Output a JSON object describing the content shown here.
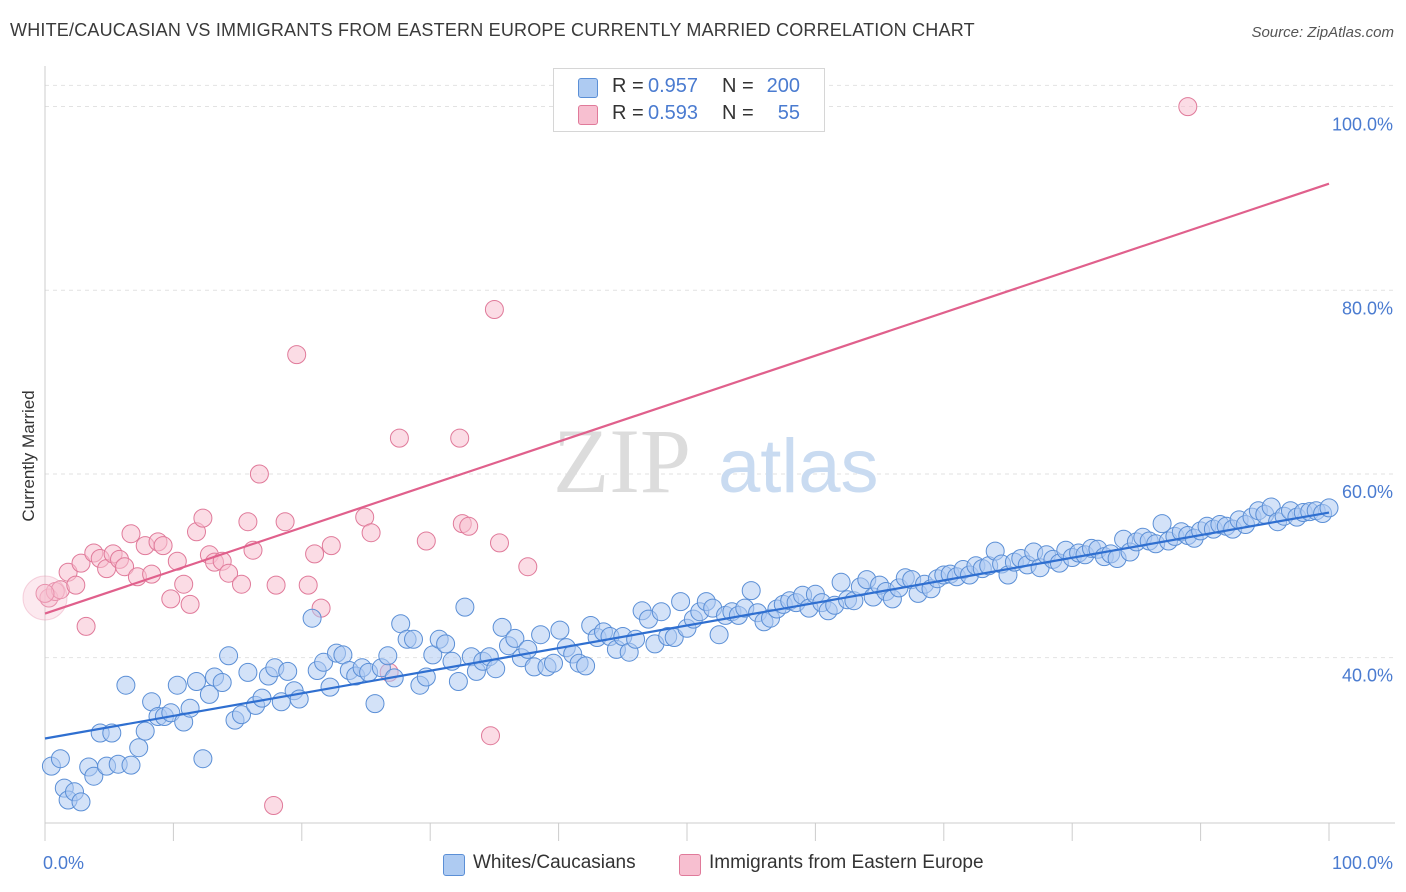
{
  "header": {
    "title": "WHITE/CAUCASIAN VS IMMIGRANTS FROM EASTERN EUROPE CURRENTLY MARRIED CORRELATION CHART",
    "source": "Source: ZipAtlas.com"
  },
  "watermark": {
    "zip": "ZIP",
    "atlas": "atlas"
  },
  "legend": {
    "rows": [
      {
        "r_label": "R =",
        "r_value": "0.957",
        "n_label": "N =",
        "n_value": "200",
        "color": "#aecbf2",
        "edge": "#5b8fd6"
      },
      {
        "r_label": "R =",
        "r_value": "0.593",
        "n_label": "N =",
        "n_value": "55",
        "color": "#f7bfd0",
        "edge": "#e07a9a"
      }
    ]
  },
  "bottom_legend": [
    {
      "label": "Whites/Caucasians",
      "color": "#aecbf2",
      "edge": "#5b8fd6"
    },
    {
      "label": "Immigrants from Eastern Europe",
      "color": "#f7bfd0",
      "edge": "#e07a9a"
    }
  ],
  "chart_data": {
    "type": "scatter",
    "title": "WHITE/CAUCASIAN VS IMMIGRANTS FROM EASTERN EUROPE CURRENTLY MARRIED CORRELATION CHART",
    "xlabel": "",
    "ylabel": "Currently Married",
    "xlim": [
      0,
      100
    ],
    "ylim": [
      22,
      103
    ],
    "x_ticks": [
      "0.0%",
      "100.0%"
    ],
    "y_ticks": [
      {
        "value": 40,
        "label": "40.0%"
      },
      {
        "value": 60,
        "label": "60.0%"
      },
      {
        "value": 80,
        "label": "80.0%"
      },
      {
        "value": 100,
        "label": "100.0%"
      }
    ],
    "grid": "horizontal dashed",
    "legend_position": "top-center",
    "series": [
      {
        "name": "Whites/Caucasians",
        "color": "#5b8fd6",
        "fill": "#aecbf2",
        "trend": {
          "x": [
            0,
            100
          ],
          "y": [
            31.2,
            55.8
          ],
          "color": "#2f6fd0"
        },
        "points": [
          [
            0.5,
            28.2
          ],
          [
            1.2,
            29.0
          ],
          [
            1.5,
            25.8
          ],
          [
            1.8,
            24.5
          ],
          [
            2.3,
            25.4
          ],
          [
            2.8,
            24.3
          ],
          [
            3.4,
            28.1
          ],
          [
            3.8,
            27.1
          ],
          [
            4.3,
            31.8
          ],
          [
            4.8,
            28.2
          ],
          [
            5.2,
            31.8
          ],
          [
            5.7,
            28.4
          ],
          [
            6.3,
            37.0
          ],
          [
            6.7,
            28.3
          ],
          [
            7.3,
            30.2
          ],
          [
            7.8,
            32.0
          ],
          [
            8.3,
            35.2
          ],
          [
            8.8,
            33.6
          ],
          [
            9.3,
            33.6
          ],
          [
            9.8,
            34.0
          ],
          [
            10.3,
            37.0
          ],
          [
            10.8,
            33.0
          ],
          [
            11.3,
            34.5
          ],
          [
            11.8,
            37.4
          ],
          [
            12.3,
            29.0
          ],
          [
            12.8,
            36.0
          ],
          [
            13.2,
            37.9
          ],
          [
            13.8,
            37.3
          ],
          [
            14.3,
            40.2
          ],
          [
            14.8,
            33.2
          ],
          [
            15.3,
            33.8
          ],
          [
            15.8,
            38.4
          ],
          [
            16.4,
            34.8
          ],
          [
            16.9,
            35.6
          ],
          [
            17.4,
            38.0
          ],
          [
            17.9,
            38.9
          ],
          [
            18.4,
            35.2
          ],
          [
            18.9,
            38.5
          ],
          [
            19.4,
            36.4
          ],
          [
            19.8,
            35.5
          ],
          [
            20.8,
            44.3
          ],
          [
            21.2,
            38.6
          ],
          [
            21.7,
            39.5
          ],
          [
            22.2,
            36.8
          ],
          [
            22.7,
            40.5
          ],
          [
            23.2,
            40.3
          ],
          [
            23.7,
            38.6
          ],
          [
            24.2,
            38.0
          ],
          [
            24.7,
            38.9
          ],
          [
            25.2,
            38.4
          ],
          [
            25.7,
            35.0
          ],
          [
            26.2,
            38.9
          ],
          [
            26.7,
            40.2
          ],
          [
            27.2,
            37.8
          ],
          [
            27.7,
            43.7
          ],
          [
            28.2,
            42.0
          ],
          [
            28.7,
            42.0
          ],
          [
            29.2,
            37.0
          ],
          [
            29.7,
            37.9
          ],
          [
            30.2,
            40.3
          ],
          [
            30.7,
            42.0
          ],
          [
            31.2,
            41.5
          ],
          [
            31.7,
            39.6
          ],
          [
            32.2,
            37.4
          ],
          [
            32.7,
            45.5
          ],
          [
            33.2,
            40.1
          ],
          [
            33.6,
            38.5
          ],
          [
            34.1,
            39.6
          ],
          [
            34.6,
            40.1
          ],
          [
            35.1,
            38.8
          ],
          [
            35.6,
            43.3
          ],
          [
            36.1,
            41.3
          ],
          [
            36.6,
            42.1
          ],
          [
            37.1,
            40.0
          ],
          [
            37.6,
            40.9
          ],
          [
            38.1,
            39.0
          ],
          [
            38.6,
            42.5
          ],
          [
            39.1,
            39.0
          ],
          [
            39.6,
            39.4
          ],
          [
            40.1,
            43.0
          ],
          [
            40.6,
            41.1
          ],
          [
            41.1,
            40.4
          ],
          [
            41.6,
            39.4
          ],
          [
            42.1,
            39.1
          ],
          [
            42.5,
            43.5
          ],
          [
            43.0,
            42.2
          ],
          [
            43.5,
            42.8
          ],
          [
            44.0,
            42.3
          ],
          [
            44.5,
            40.9
          ],
          [
            45.0,
            42.3
          ],
          [
            45.5,
            40.6
          ],
          [
            46.0,
            42.0
          ],
          [
            46.5,
            45.1
          ],
          [
            47.0,
            44.2
          ],
          [
            47.5,
            41.5
          ],
          [
            48.0,
            45.0
          ],
          [
            48.5,
            42.3
          ],
          [
            49.0,
            42.2
          ],
          [
            49.5,
            46.1
          ],
          [
            50.0,
            43.2
          ],
          [
            50.5,
            44.2
          ],
          [
            51.0,
            45.0
          ],
          [
            51.5,
            46.1
          ],
          [
            52.0,
            45.4
          ],
          [
            52.5,
            42.5
          ],
          [
            53.0,
            44.6
          ],
          [
            53.5,
            45.0
          ],
          [
            54.0,
            44.6
          ],
          [
            54.5,
            45.4
          ],
          [
            55.0,
            47.3
          ],
          [
            55.5,
            44.9
          ],
          [
            56.0,
            43.9
          ],
          [
            56.5,
            44.3
          ],
          [
            57.0,
            45.3
          ],
          [
            57.5,
            45.8
          ],
          [
            58.0,
            46.2
          ],
          [
            58.5,
            46.0
          ],
          [
            59.0,
            46.8
          ],
          [
            59.5,
            45.4
          ],
          [
            60.0,
            46.9
          ],
          [
            60.5,
            46.0
          ],
          [
            61.0,
            45.1
          ],
          [
            61.5,
            45.7
          ],
          [
            62.0,
            48.2
          ],
          [
            62.5,
            46.3
          ],
          [
            63.0,
            46.2
          ],
          [
            63.5,
            47.7
          ],
          [
            64.0,
            48.5
          ],
          [
            64.5,
            46.6
          ],
          [
            65.0,
            47.9
          ],
          [
            65.5,
            47.2
          ],
          [
            66.0,
            46.4
          ],
          [
            66.5,
            47.6
          ],
          [
            67.0,
            48.7
          ],
          [
            67.5,
            48.5
          ],
          [
            68.0,
            47.0
          ],
          [
            68.5,
            48.0
          ],
          [
            69.0,
            47.5
          ],
          [
            69.5,
            48.6
          ],
          [
            70.0,
            49.0
          ],
          [
            70.5,
            49.1
          ],
          [
            71.0,
            48.8
          ],
          [
            71.5,
            49.6
          ],
          [
            72.0,
            49.0
          ],
          [
            72.5,
            50.0
          ],
          [
            73.0,
            49.7
          ],
          [
            73.5,
            50.0
          ],
          [
            74.0,
            51.6
          ],
          [
            74.5,
            50.2
          ],
          [
            75.0,
            49.0
          ],
          [
            75.5,
            50.4
          ],
          [
            76.0,
            50.8
          ],
          [
            76.5,
            50.1
          ],
          [
            77.0,
            51.5
          ],
          [
            77.5,
            49.8
          ],
          [
            78.0,
            51.2
          ],
          [
            78.5,
            50.7
          ],
          [
            79.0,
            50.3
          ],
          [
            79.5,
            51.7
          ],
          [
            80.0,
            50.9
          ],
          [
            80.5,
            51.4
          ],
          [
            81.0,
            51.2
          ],
          [
            81.5,
            51.9
          ],
          [
            82.0,
            51.8
          ],
          [
            82.5,
            51.0
          ],
          [
            83.0,
            51.3
          ],
          [
            83.5,
            50.8
          ],
          [
            84.0,
            52.9
          ],
          [
            84.5,
            51.5
          ],
          [
            85.0,
            52.6
          ],
          [
            85.5,
            53.1
          ],
          [
            86.0,
            52.7
          ],
          [
            86.5,
            52.4
          ],
          [
            87.0,
            54.6
          ],
          [
            87.5,
            52.7
          ],
          [
            88.0,
            53.2
          ],
          [
            88.5,
            53.7
          ],
          [
            89.0,
            53.3
          ],
          [
            89.5,
            53.0
          ],
          [
            90.0,
            53.8
          ],
          [
            90.5,
            54.3
          ],
          [
            91.0,
            54.0
          ],
          [
            91.5,
            54.5
          ],
          [
            92.0,
            54.3
          ],
          [
            92.5,
            54.0
          ],
          [
            93.0,
            55.0
          ],
          [
            93.5,
            54.5
          ],
          [
            94.0,
            55.3
          ],
          [
            94.5,
            56.0
          ],
          [
            95.0,
            55.6
          ],
          [
            95.5,
            56.4
          ],
          [
            96.0,
            54.8
          ],
          [
            96.5,
            55.4
          ],
          [
            97.0,
            56.0
          ],
          [
            97.5,
            55.3
          ],
          [
            98.0,
            55.8
          ],
          [
            98.5,
            55.9
          ],
          [
            99.0,
            56.0
          ],
          [
            99.5,
            55.7
          ],
          [
            100.0,
            56.3
          ]
        ]
      },
      {
        "name": "Immigrants from Eastern Europe",
        "color": "#e07a9a",
        "fill": "#f7bfd0",
        "trend": {
          "x": [
            0,
            100
          ],
          "y": [
            44.8,
            91.6
          ],
          "color": "#e0608c"
        },
        "points": [
          [
            0.3,
            46.5
          ],
          [
            0.8,
            47.2
          ],
          [
            1.2,
            47.4
          ],
          [
            1.8,
            49.3
          ],
          [
            2.4,
            47.9
          ],
          [
            2.8,
            50.3
          ],
          [
            3.2,
            43.4
          ],
          [
            3.8,
            51.4
          ],
          [
            4.3,
            50.8
          ],
          [
            4.8,
            49.7
          ],
          [
            5.3,
            51.3
          ],
          [
            5.8,
            50.7
          ],
          [
            6.2,
            49.9
          ],
          [
            6.7,
            53.5
          ],
          [
            7.2,
            48.8
          ],
          [
            7.8,
            52.2
          ],
          [
            8.3,
            49.1
          ],
          [
            8.8,
            52.6
          ],
          [
            9.2,
            52.2
          ],
          [
            9.8,
            46.4
          ],
          [
            10.3,
            50.5
          ],
          [
            10.8,
            48.0
          ],
          [
            11.3,
            45.8
          ],
          [
            11.8,
            53.7
          ],
          [
            12.3,
            55.2
          ],
          [
            12.8,
            51.2
          ],
          [
            13.2,
            50.4
          ],
          [
            13.8,
            50.5
          ],
          [
            14.3,
            49.2
          ],
          [
            15.3,
            48.0
          ],
          [
            15.8,
            54.8
          ],
          [
            16.2,
            51.7
          ],
          [
            16.7,
            60.0
          ],
          [
            18.0,
            47.9
          ],
          [
            18.7,
            54.8
          ],
          [
            19.6,
            73.0
          ],
          [
            20.5,
            47.9
          ],
          [
            21.0,
            51.3
          ],
          [
            21.5,
            45.4
          ],
          [
            22.3,
            52.2
          ],
          [
            24.9,
            55.3
          ],
          [
            25.4,
            53.6
          ],
          [
            26.8,
            38.4
          ],
          [
            27.6,
            63.9
          ],
          [
            29.7,
            52.7
          ],
          [
            32.3,
            63.9
          ],
          [
            32.5,
            54.6
          ],
          [
            33.0,
            54.3
          ],
          [
            34.7,
            31.5
          ],
          [
            35.0,
            77.9
          ],
          [
            35.4,
            52.5
          ],
          [
            37.6,
            49.9
          ],
          [
            17.8,
            23.9
          ],
          [
            89.0,
            100.0
          ],
          [
            0.0,
            47.0
          ]
        ]
      }
    ]
  }
}
